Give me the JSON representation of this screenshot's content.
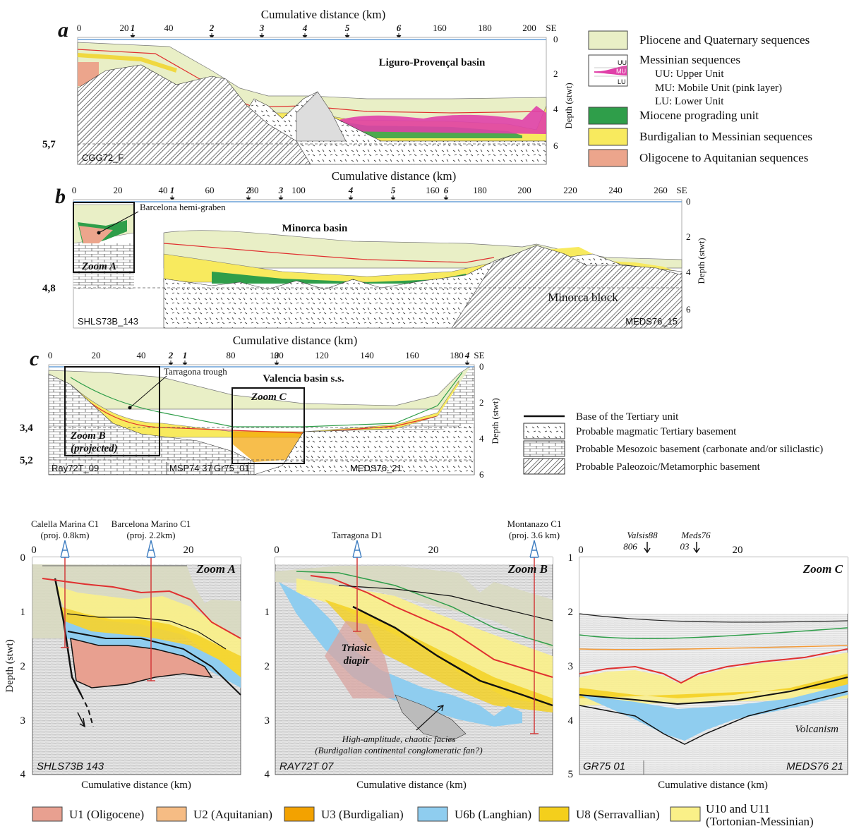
{
  "panel_a": {
    "letter": "a",
    "x_title": "Cumulative distance (km)",
    "x_ticks": [
      "0",
      "20",
      "40",
      "160",
      "180",
      "200"
    ],
    "wells": [
      "1",
      "2",
      "3",
      "4",
      "5",
      "6"
    ],
    "se": "SE",
    "depth_ticks": [
      "0",
      "2",
      "4",
      "6"
    ],
    "depth_label": "Depth (stwt)",
    "basin": "Liguro-Provençal basin",
    "profile": "CGG72_F",
    "depth_mark": "5,7"
  },
  "panel_b": {
    "letter": "b",
    "x_title": "Cumulative distance (km)",
    "x_ticks": [
      "0",
      "20",
      "40",
      "60",
      "80",
      "100",
      "160",
      "180",
      "200",
      "220",
      "240",
      "260"
    ],
    "wells": [
      "1",
      "2",
      "3",
      "4",
      "5",
      "6"
    ],
    "se": "SE",
    "depth_ticks": [
      "0",
      "2",
      "4",
      "6"
    ],
    "depth_label": "Depth (stwt)",
    "basin": "Minorca basin",
    "graben": "Barcelona hemi-graben",
    "zoom": "Zoom A",
    "block": "Minorca block",
    "profile_left": "SHLS73B_143",
    "profile_right": "MEDS76_15",
    "depth_mark": "4,8"
  },
  "panel_c": {
    "letter": "c",
    "x_title": "Cumulative distance (km)",
    "x_ticks": [
      "0",
      "20",
      "40",
      "80",
      "100",
      "120",
      "140",
      "160",
      "180"
    ],
    "wells": [
      "2",
      "1",
      "3",
      "4"
    ],
    "se": "SE",
    "depth_ticks": [
      "0",
      "2",
      "4",
      "6"
    ],
    "depth_label": "Depth (stwt)",
    "basin": "Valencia basin s.s.",
    "trough": "Tarragona trough",
    "zoom_b_1": "Zoom B",
    "zoom_b_2": "(projected)",
    "zoom_c": "Zoom C",
    "profiles": [
      "Ray72T_09",
      "MSP74 37",
      "Gr75_01",
      "MEDS76_21"
    ],
    "depth_mark_1": "3,4",
    "depth_mark_2": "5,2"
  },
  "legend_top": [
    {
      "label": "Pliocene and Quaternary sequences",
      "color": "#e9efc6"
    },
    {
      "label": "Messinian sequences",
      "color": "#ffffff"
    },
    {
      "label": "Miocene prograding unit",
      "color": "#2f9e4a"
    },
    {
      "label": "Burdigalian to Messinian sequences",
      "color": "#f8ea5e"
    },
    {
      "label": "Oligocene to Aquitanian sequences",
      "color": "#eca58c"
    }
  ],
  "messinian_sub": [
    "UU: Upper Unit",
    "MU: Mobile Unit (pink layer)",
    "LU: Lower Unit"
  ],
  "messinian_icon": [
    "UU",
    "MU",
    "LU"
  ],
  "legend_basement": [
    "Base of the Tertiary unit",
    "Probable magmatic Tertiary basement",
    "Probable Mesozoic basement (carbonate and/or siliclastic)",
    "Probable Paleozoic/Metamorphic basement"
  ],
  "zoom_a": {
    "title": "Zoom A",
    "x_ticks": [
      "0",
      "20"
    ],
    "y_ticks": [
      "0",
      "1",
      "2",
      "3",
      "4"
    ],
    "y_label": "Depth (stwt)",
    "well1": "Calella Marina C1",
    "well1_proj": "(proj. 0.8km)",
    "well2": "Barcelona Marino C1",
    "well2_proj": "(proj. 2.2km)",
    "profile": "SHLS73B 143",
    "x_label": "Cumulative distance (km)"
  },
  "zoom_b": {
    "title": "Zoom B",
    "x_ticks": [
      "0",
      "20"
    ],
    "y_ticks": [
      "1",
      "2",
      "3",
      "4"
    ],
    "well1": "Tarragona D1",
    "well2": "Montanazo C1",
    "well2_proj": "(proj. 3.6 km)",
    "diapir1": "Triasic",
    "diapir2": "diapir",
    "facies1": "High-amplitude, chaotic facies",
    "facies2": "(Burdigalian continental conglomeratic fan?)",
    "profile": "RAY72T 07",
    "x_label": "Cumulative distance (km)"
  },
  "zoom_c": {
    "title": "Zoom C",
    "x_ticks": [
      "0",
      "20"
    ],
    "y_ticks": [
      "1",
      "2",
      "3",
      "4",
      "5"
    ],
    "m1a": "Valsis88",
    "m1b": "806",
    "m2a": "Meds76",
    "m2b": "03",
    "volcanism": "Volcanism",
    "profile_left": "GR75 01",
    "profile_right": "MEDS76 21",
    "x_label": "Cumulative distance (km)"
  },
  "legend_bottom": [
    {
      "label": "U1 (Oligocene)",
      "color": "#e8a090"
    },
    {
      "label": "U2 (Aquitanian)",
      "color": "#f6bc84"
    },
    {
      "label": "U3 (Burdigalian)",
      "color": "#f3a200"
    },
    {
      "label": "U6b (Langhian)",
      "color": "#8fcdef"
    },
    {
      "label": "U8 (Serravallian)",
      "color": "#f4cf1c"
    },
    {
      "label": "U10 and U11",
      "label2": "(Tortonian-Messinian)",
      "color": "#faf088"
    }
  ]
}
